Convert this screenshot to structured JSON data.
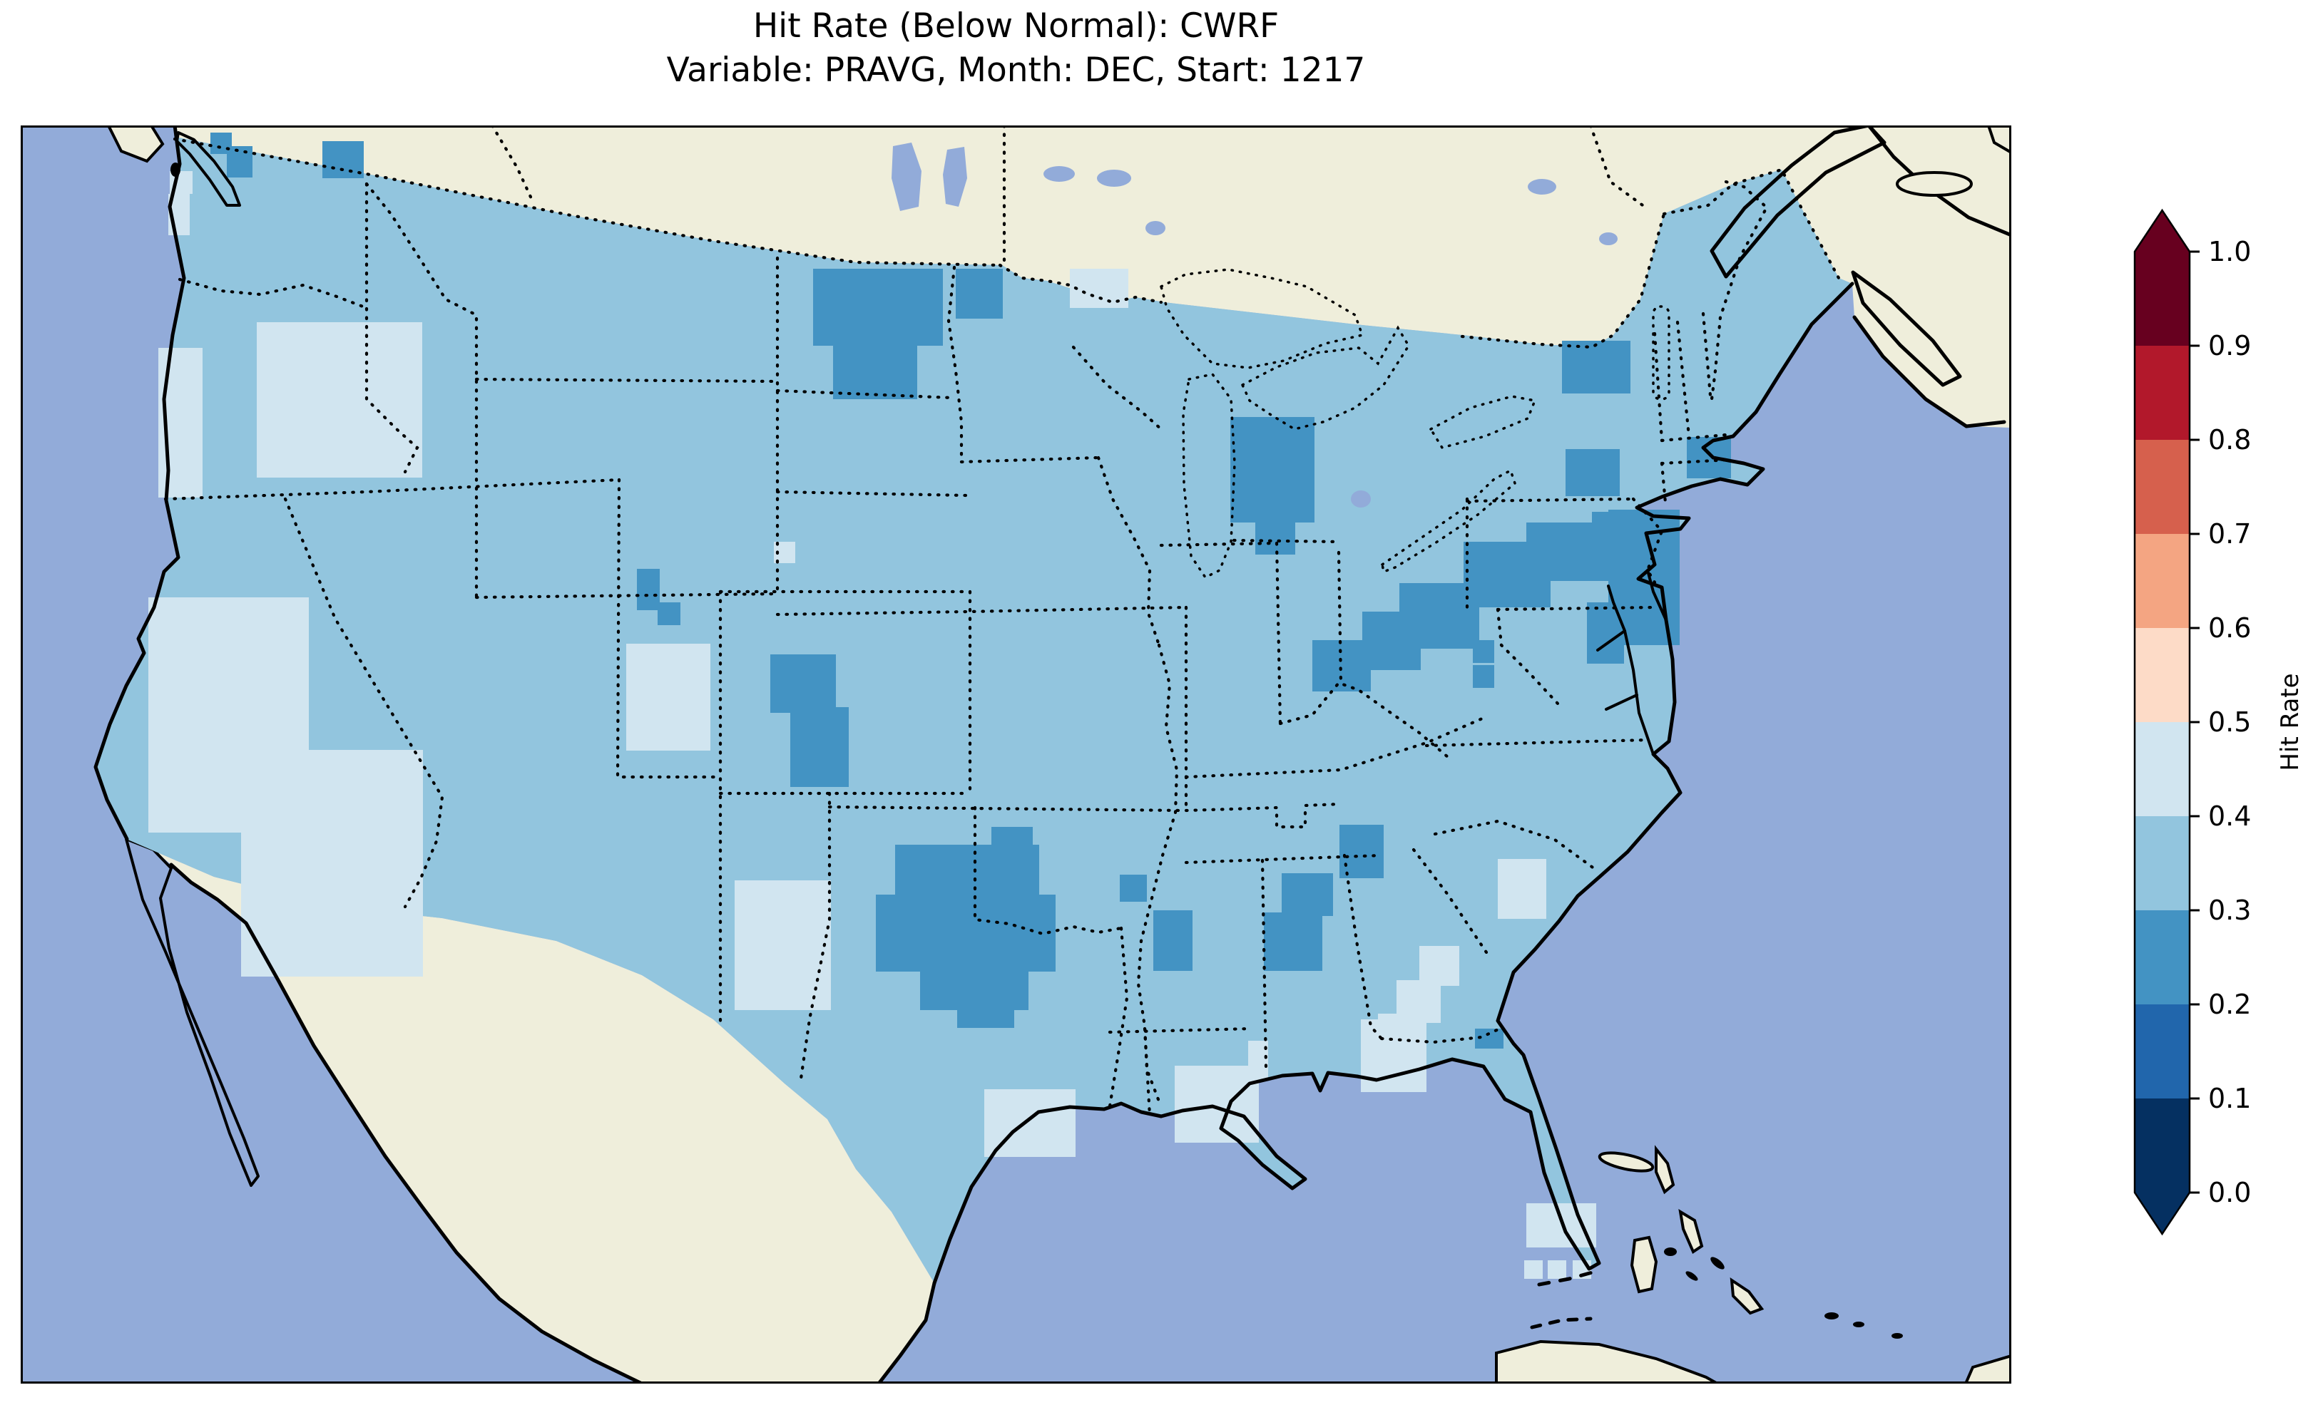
{
  "title": {
    "line1": "Hit Rate (Below Normal): CWRF",
    "line2": "Variable: PRAVG, Month: DEC, Start: 1217"
  },
  "colorbar": {
    "label": "Hit Rate",
    "ticks": [
      "1.0",
      "0.9",
      "0.8",
      "0.7",
      "0.6",
      "0.5",
      "0.4",
      "0.3",
      "0.2",
      "0.1",
      "0.0"
    ],
    "segments_top_to_bottom": [
      {
        "range": "0.9-1.0",
        "color": "#67001f"
      },
      {
        "range": "0.8-0.9",
        "color": "#b2182b"
      },
      {
        "range": "0.7-0.8",
        "color": "#d6604d"
      },
      {
        "range": "0.6-0.7",
        "color": "#f4a582"
      },
      {
        "range": "0.5-0.6",
        "color": "#fddbc7"
      },
      {
        "range": "0.4-0.5",
        "color": "#d1e5f0"
      },
      {
        "range": "0.3-0.4",
        "color": "#92c5de"
      },
      {
        "range": "0.2-0.3",
        "color": "#4393c3"
      },
      {
        "range": "0.1-0.2",
        "color": "#2166ac"
      },
      {
        "range": "0.0-0.1",
        "color": "#053061"
      }
    ],
    "extend_over_color": "#67001f",
    "extend_under_color": "#053061"
  },
  "map": {
    "ocean_color": "#92abd9",
    "land_color": "#efeedb",
    "lake_color": "#92abd9",
    "base_color": "#92c5de",
    "base_bin": "0.3-0.4",
    "patches": {
      "light": {
        "bin": "0.4-0.5",
        "color": "#d1e5f0",
        "rects": [
          [
            238,
            240,
            32,
            32
          ],
          [
            236,
            272,
            30,
            58
          ],
          [
            222,
            488,
            62,
            210
          ],
          [
            360,
            452,
            232,
            218
          ],
          [
            208,
            838,
            225,
            330
          ],
          [
            338,
            1052,
            255,
            318
          ],
          [
            878,
            903,
            118,
            150
          ],
          [
            1085,
            760,
            30,
            30
          ],
          [
            1030,
            1235,
            135,
            182
          ],
          [
            1196,
            377,
            60,
            28
          ],
          [
            1500,
            377,
            82,
            55
          ],
          [
            1380,
            1528,
            128,
            95
          ],
          [
            1647,
            1495,
            118,
            108
          ],
          [
            1750,
            1460,
            28,
            56
          ],
          [
            1908,
            1430,
            92,
            102
          ],
          [
            1990,
            1327,
            56,
            56
          ],
          [
            1958,
            1375,
            62,
            60
          ],
          [
            1932,
            1422,
            62,
            55
          ],
          [
            2100,
            1205,
            68,
            84
          ],
          [
            2140,
            1688,
            98,
            62
          ],
          [
            2137,
            1768,
            26,
            26
          ],
          [
            2170,
            1768,
            26,
            26
          ],
          [
            2205,
            1768,
            26,
            26
          ]
        ]
      },
      "dark": {
        "bin": "0.2-0.3",
        "color": "#4393c3",
        "rects": [
          [
            295,
            186,
            30,
            30
          ],
          [
            318,
            205,
            36,
            44
          ],
          [
            452,
            198,
            58,
            52
          ],
          [
            1140,
            377,
            182,
            108
          ],
          [
            1168,
            478,
            118,
            82
          ],
          [
            1340,
            377,
            66,
            70
          ],
          [
            893,
            798,
            32,
            58
          ],
          [
            922,
            845,
            32,
            32
          ],
          [
            1080,
            918,
            92,
            82
          ],
          [
            1108,
            992,
            82,
            112
          ],
          [
            1390,
            1160,
            58,
            58
          ],
          [
            1255,
            1185,
            202,
            82
          ],
          [
            1228,
            1255,
            252,
            108
          ],
          [
            1290,
            1357,
            152,
            60
          ],
          [
            1342,
            1412,
            80,
            30
          ],
          [
            1570,
            1227,
            38,
            38
          ],
          [
            1617,
            1277,
            55,
            85
          ],
          [
            1797,
            1225,
            72,
            60
          ],
          [
            1772,
            1280,
            82,
            82
          ],
          [
            1878,
            1157,
            62,
            75
          ],
          [
            1725,
            585,
            118,
            148
          ],
          [
            1760,
            728,
            56,
            50
          ],
          [
            2190,
            478,
            96,
            74
          ],
          [
            2195,
            630,
            76,
            66
          ],
          [
            1840,
            898,
            82,
            72
          ],
          [
            1910,
            858,
            82,
            82
          ],
          [
            1962,
            818,
            112,
            92
          ],
          [
            2052,
            760,
            122,
            92
          ],
          [
            2140,
            733,
            122,
            82
          ],
          [
            2232,
            718,
            68,
            62
          ],
          [
            2255,
            715,
            100,
            190
          ],
          [
            2225,
            845,
            52,
            86
          ],
          [
            2065,
            898,
            30,
            32
          ],
          [
            2065,
            933,
            30,
            32
          ],
          [
            2365,
            613,
            62,
            58
          ],
          [
            2068,
            1443,
            40,
            28
          ]
        ]
      }
    }
  },
  "chart_data": {
    "type": "heatmap",
    "title": "Hit Rate (Below Normal): CWRF",
    "subtitle": "Variable: PRAVG, Month: DEC, Start: 1217",
    "model": "CWRF",
    "variable": "PRAVG",
    "month": "DEC",
    "start": "1217",
    "metric": "Hit Rate (Below Normal)",
    "colorbar_label": "Hit Rate",
    "colorbar_range": [
      0.0,
      1.0
    ],
    "colorbar_ticks": [
      1.0,
      0.9,
      0.8,
      0.7,
      0.6,
      0.5,
      0.4,
      0.3,
      0.2,
      0.1,
      0.0
    ],
    "colormap": "RdBu reversed, 10 discrete bins, extend both ends",
    "bins": [
      {
        "range": [
          0.0,
          0.1
        ],
        "color": "#053061"
      },
      {
        "range": [
          0.1,
          0.2
        ],
        "color": "#2166ac"
      },
      {
        "range": [
          0.2,
          0.3
        ],
        "color": "#4393c3"
      },
      {
        "range": [
          0.3,
          0.4
        ],
        "color": "#92c5de"
      },
      {
        "range": [
          0.4,
          0.5
        ],
        "color": "#d1e5f0"
      },
      {
        "range": [
          0.5,
          0.6
        ],
        "color": "#fddbc7"
      },
      {
        "range": [
          0.6,
          0.7
        ],
        "color": "#f4a582"
      },
      {
        "range": [
          0.7,
          0.8
        ],
        "color": "#d6604d"
      },
      {
        "range": [
          0.8,
          0.9
        ],
        "color": "#b2182b"
      },
      {
        "range": [
          0.9,
          1.0
        ],
        "color": "#67001f"
      }
    ],
    "map_extent": "Contiguous United States with southern Canada, Mexico, Bahamas and Cuba visible",
    "dominant_bin": [
      0.3,
      0.4
    ],
    "regions": [
      {
        "area": "Most of the contiguous US",
        "hit_rate": [
          0.3,
          0.4
        ]
      },
      {
        "area": "California, Nevada, southern Arizona, New Mexico, coastal Oregon, central Utah",
        "hit_rate": [
          0.4,
          0.5
        ]
      },
      {
        "area": "Louisiana / Mississippi Gulf coast, Florida panhandle, central Georgia, South Carolina coast, south Florida",
        "hit_rate": [
          0.4,
          0.5
        ]
      },
      {
        "area": "Oklahoma and north Texas",
        "hit_rate": [
          0.2,
          0.3
        ]
      },
      {
        "area": "Montana / North Dakota border",
        "hit_rate": [
          0.2,
          0.3
        ]
      },
      {
        "area": "Lower Michigan",
        "hit_rate": [
          0.2,
          0.3
        ]
      },
      {
        "area": "Ohio Valley through Pennsylvania, New Jersey and Delmarva",
        "hit_rate": [
          0.2,
          0.3
        ]
      },
      {
        "area": "Alabama and Tennessee/Georgia border",
        "hit_rate": [
          0.2,
          0.3
        ]
      },
      {
        "area": "Colorado Rockies and Utah/Wyoming border",
        "hit_rate": [
          0.2,
          0.3
        ]
      },
      {
        "area": "Puget Sound, northern Idaho, upstate New York, Cape Cod",
        "hit_rate": [
          0.2,
          0.3
        ]
      }
    ]
  }
}
